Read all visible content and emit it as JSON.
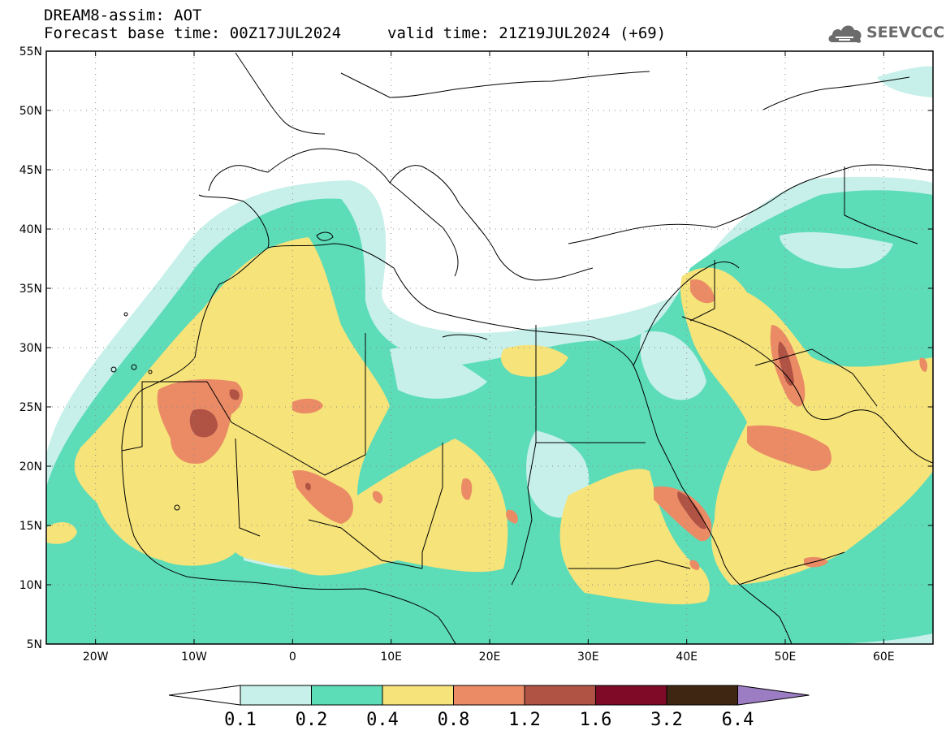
{
  "header": {
    "title": "DREAM8-assim: AOT",
    "base_time": "Forecast base time: 00Z17JUL2024",
    "valid_time": "valid time: 21Z19JUL2024 (+69)"
  },
  "logo": {
    "text": "SEEVCCC",
    "icon": "cloud-icon"
  },
  "map": {
    "region": {
      "lon_min": -25,
      "lon_max": 65,
      "lat_min": 5,
      "lat_max": 55
    },
    "lat_ticks": [
      {
        "value": 55,
        "label": "55N"
      },
      {
        "value": 50,
        "label": "50N"
      },
      {
        "value": 45,
        "label": "45N"
      },
      {
        "value": 40,
        "label": "40N"
      },
      {
        "value": 35,
        "label": "35N"
      },
      {
        "value": 30,
        "label": "30N"
      },
      {
        "value": 25,
        "label": "25N"
      },
      {
        "value": 20,
        "label": "20N"
      },
      {
        "value": 15,
        "label": "15N"
      },
      {
        "value": 10,
        "label": "10N"
      },
      {
        "value": 5,
        "label": "5N"
      }
    ],
    "lon_ticks": [
      {
        "value": -20,
        "label": "20W"
      },
      {
        "value": -10,
        "label": "10W"
      },
      {
        "value": 0,
        "label": "0"
      },
      {
        "value": 10,
        "label": "10E"
      },
      {
        "value": 20,
        "label": "20E"
      },
      {
        "value": 30,
        "label": "30E"
      },
      {
        "value": 40,
        "label": "40E"
      },
      {
        "value": 50,
        "label": "50E"
      },
      {
        "value": 60,
        "label": "60E"
      }
    ]
  },
  "colorbar": {
    "levels": [
      "0.1",
      "0.2",
      "0.4",
      "0.8",
      "1.2",
      "1.6",
      "3.2",
      "6.4"
    ],
    "colors": {
      "below": "#ffffff",
      "bins": [
        "#c6f0e9",
        "#5ddcb8",
        "#f6e37a",
        "#ea8b66",
        "#b05244",
        "#7e0a28",
        "#3f2612"
      ],
      "above": "#9c7cc3"
    }
  }
}
